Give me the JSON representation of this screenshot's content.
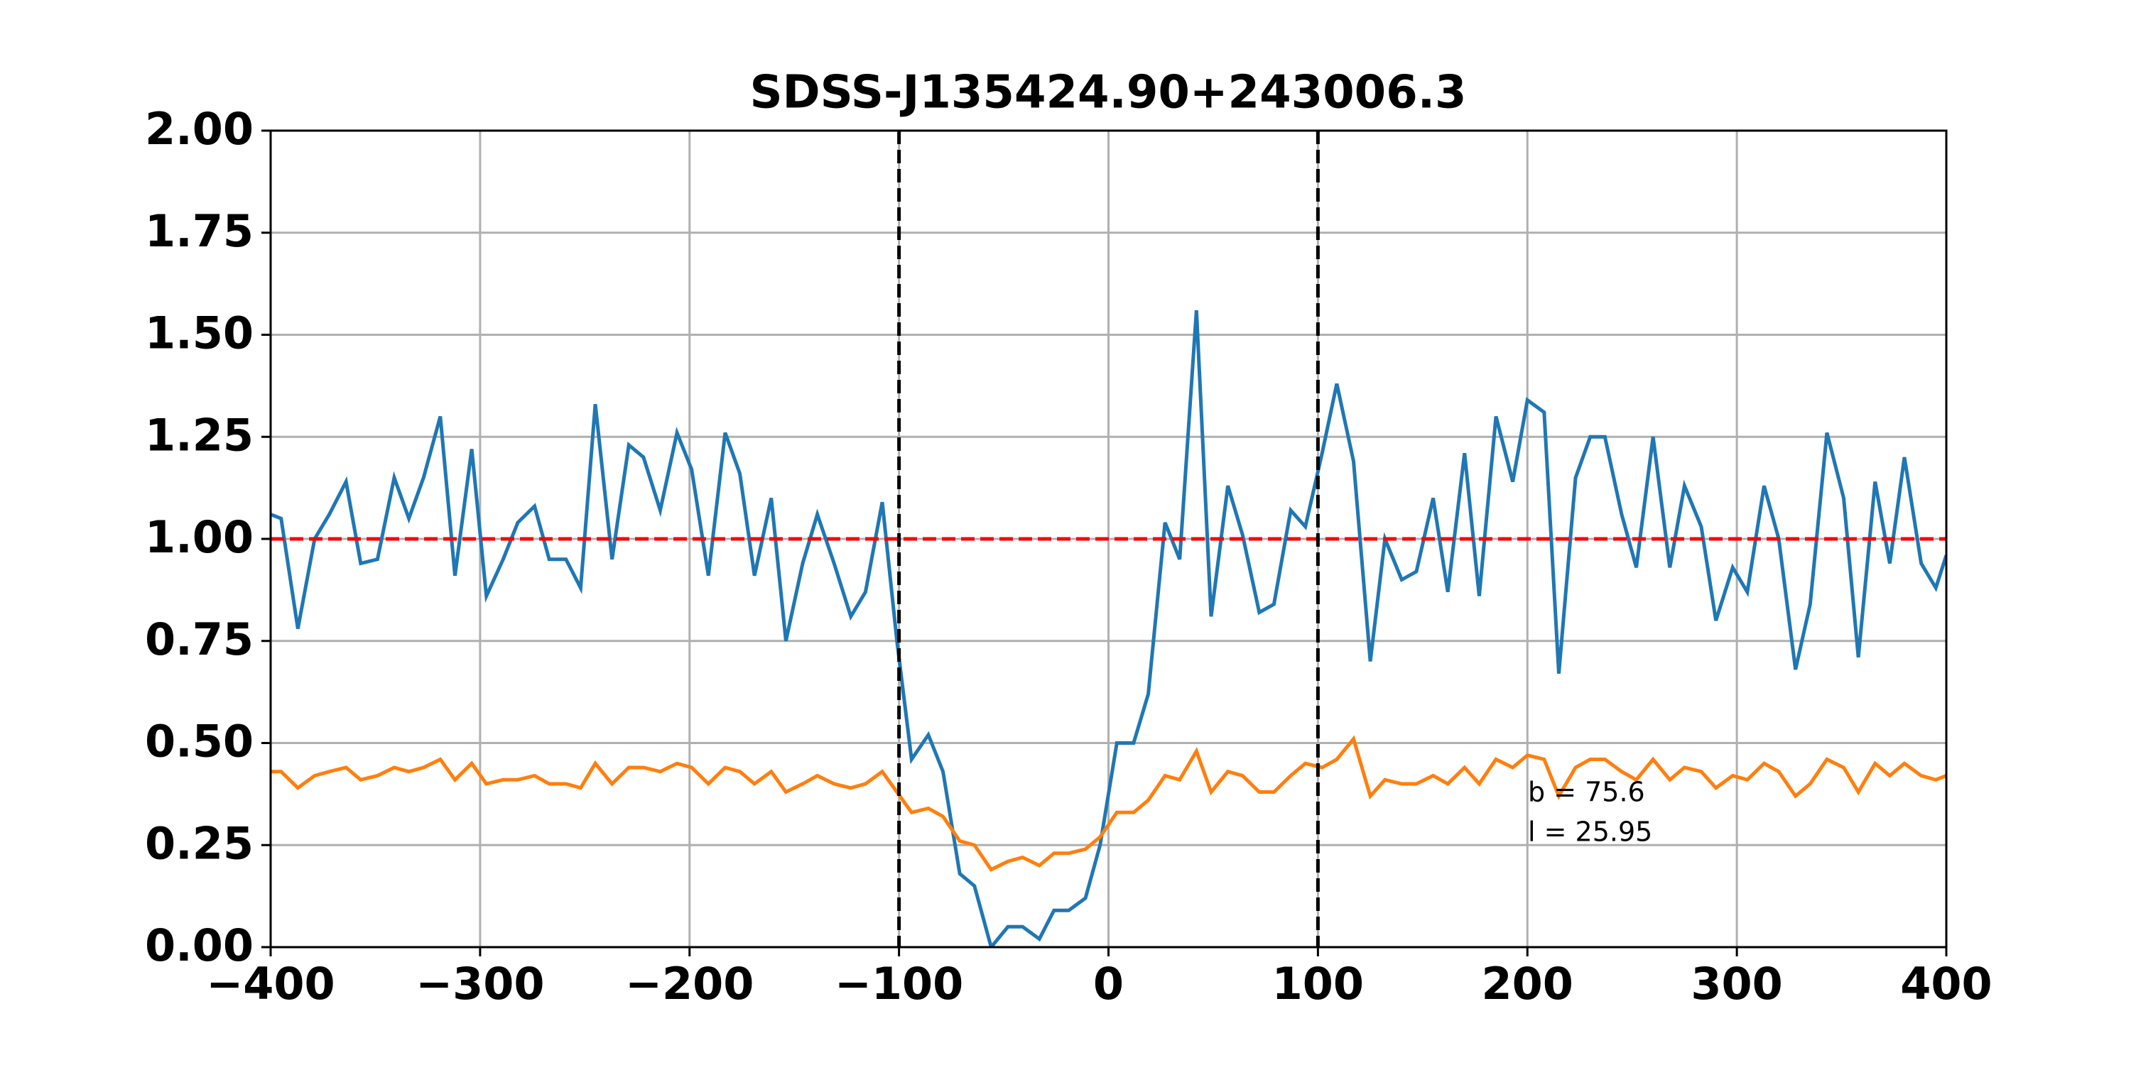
{
  "chart_data": {
    "type": "line",
    "title": "SDSS-J135424.90+243006.3",
    "x": [
      -400,
      -395,
      -387,
      -379,
      -372,
      -364,
      -357,
      -349,
      -341,
      -334,
      -327,
      -319,
      -312,
      -304,
      -297,
      -289,
      -282,
      -274,
      -267,
      -259,
      -252,
      -245,
      -237,
      -229,
      -222,
      -214,
      -206,
      -199,
      -191,
      -183,
      -176,
      -169,
      -161,
      -154,
      -146,
      -139,
      -131,
      -123,
      -116,
      -108,
      -101,
      -94,
      -86,
      -79,
      -71,
      -64,
      -56,
      -48,
      -41,
      -33,
      -26,
      -19,
      -11,
      -4,
      4,
      12,
      19,
      27,
      34,
      42,
      49,
      57,
      64,
      72,
      79,
      87,
      94,
      102,
      109,
      117,
      125,
      132,
      140,
      147,
      155,
      162,
      170,
      177,
      185,
      193,
      200,
      208,
      215,
      223,
      230,
      237,
      245,
      252,
      260,
      268,
      275,
      283,
      290,
      298,
      305,
      313,
      320,
      328,
      335,
      343,
      351,
      358,
      366,
      373,
      380,
      388,
      395,
      400
    ],
    "series": [
      {
        "color": "#1f77b4",
        "values": [
          1.06,
          1.05,
          0.78,
          1.0,
          1.06,
          1.14,
          0.94,
          0.95,
          1.15,
          1.05,
          1.15,
          1.3,
          0.91,
          1.22,
          0.86,
          0.95,
          1.04,
          1.08,
          0.95,
          0.95,
          0.88,
          1.33,
          0.95,
          1.23,
          1.2,
          1.07,
          1.26,
          1.17,
          0.91,
          1.26,
          1.16,
          0.91,
          1.1,
          0.75,
          0.94,
          1.06,
          0.94,
          0.81,
          0.87,
          1.09,
          0.75,
          0.46,
          0.52,
          0.43,
          0.18,
          0.15,
          0.0,
          0.05,
          0.05,
          0.02,
          0.09,
          0.09,
          0.12,
          0.25,
          0.5,
          0.5,
          0.62,
          1.04,
          0.95,
          1.56,
          0.81,
          1.13,
          1.01,
          0.82,
          0.84,
          1.07,
          1.03,
          1.21,
          1.38,
          1.19,
          0.7,
          1.0,
          0.9,
          0.92,
          1.1,
          0.87,
          1.21,
          0.86,
          1.3,
          1.14,
          1.34,
          1.31,
          0.67,
          1.15,
          1.25,
          1.25,
          1.06,
          0.93,
          1.25,
          0.93,
          1.13,
          1.03,
          0.8,
          0.93,
          0.87,
          1.13,
          1.0,
          0.68,
          0.84,
          1.26,
          1.1,
          0.71,
          1.14,
          0.94,
          1.2,
          0.94,
          0.88,
          0.96
        ]
      },
      {
        "color": "#ff7f0e",
        "values": [
          0.43,
          0.43,
          0.39,
          0.42,
          0.43,
          0.44,
          0.41,
          0.42,
          0.44,
          0.43,
          0.44,
          0.46,
          0.41,
          0.45,
          0.4,
          0.41,
          0.41,
          0.42,
          0.4,
          0.4,
          0.39,
          0.45,
          0.4,
          0.44,
          0.44,
          0.43,
          0.45,
          0.44,
          0.4,
          0.44,
          0.43,
          0.4,
          0.43,
          0.38,
          0.4,
          0.42,
          0.4,
          0.39,
          0.4,
          0.43,
          0.38,
          0.33,
          0.34,
          0.32,
          0.26,
          0.25,
          0.19,
          0.21,
          0.22,
          0.2,
          0.23,
          0.23,
          0.24,
          0.27,
          0.33,
          0.33,
          0.36,
          0.42,
          0.41,
          0.48,
          0.38,
          0.43,
          0.42,
          0.38,
          0.38,
          0.42,
          0.45,
          0.44,
          0.46,
          0.51,
          0.37,
          0.41,
          0.4,
          0.4,
          0.42,
          0.4,
          0.44,
          0.4,
          0.46,
          0.44,
          0.47,
          0.46,
          0.37,
          0.44,
          0.46,
          0.46,
          0.43,
          0.41,
          0.46,
          0.41,
          0.44,
          0.43,
          0.39,
          0.42,
          0.41,
          0.45,
          0.43,
          0.37,
          0.4,
          0.46,
          0.44,
          0.38,
          0.45,
          0.42,
          0.45,
          0.42,
          0.41,
          0.42
        ]
      }
    ],
    "hlines": [
      {
        "value": 1,
        "color": "#ff0000"
      }
    ],
    "vlines": [
      {
        "value": -100,
        "color": "#000000"
      },
      {
        "value": 100,
        "color": "#000000"
      }
    ],
    "annotations": [
      "b = 75.6",
      "l = 25.95"
    ],
    "xlim": [
      -400,
      400
    ],
    "xticks": [
      {
        "value": -400,
        "label": "−400"
      },
      {
        "value": -300,
        "label": "−300"
      },
      {
        "value": -200,
        "label": "−200"
      },
      {
        "value": -100,
        "label": "−100"
      },
      0,
      100,
      200,
      300,
      400
    ],
    "ylim": [
      0,
      2
    ],
    "yticks": [
      {
        "value": 0,
        "label": "0.00"
      },
      0.25,
      {
        "value": 0.5,
        "label": "0.50"
      },
      0.75,
      {
        "value": 1,
        "label": "1.00"
      },
      1.25,
      {
        "value": 1.5,
        "label": "1.50"
      },
      1.75,
      {
        "value": 2,
        "label": "2.00"
      }
    ],
    "grid": true
  }
}
